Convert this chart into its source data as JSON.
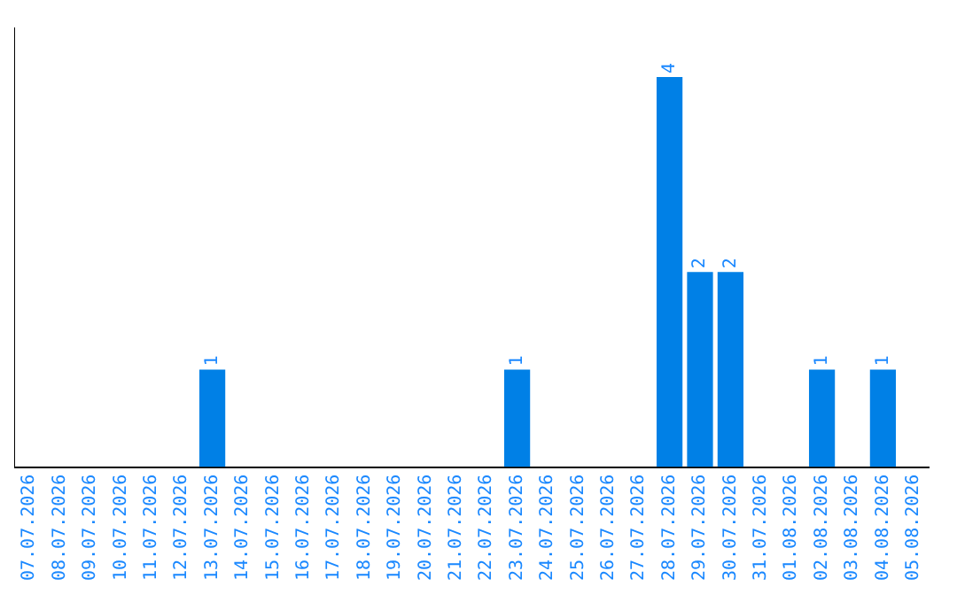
{
  "chart_data": {
    "type": "bar",
    "categories": [
      "07.07.2026",
      "08.07.2026",
      "09.07.2026",
      "10.07.2026",
      "11.07.2026",
      "12.07.2026",
      "13.07.2026",
      "14.07.2026",
      "15.07.2026",
      "16.07.2026",
      "17.07.2026",
      "18.07.2026",
      "19.07.2026",
      "20.07.2026",
      "21.07.2026",
      "22.07.2026",
      "23.07.2026",
      "24.07.2026",
      "25.07.2026",
      "26.07.2026",
      "27.07.2026",
      "28.07.2026",
      "29.07.2026",
      "30.07.2026",
      "31.07.2026",
      "01.08.2026",
      "02.08.2026",
      "03.08.2026",
      "04.08.2026",
      "05.08.2026"
    ],
    "values": [
      0,
      0,
      0,
      0,
      0,
      0,
      1,
      0,
      0,
      0,
      0,
      0,
      0,
      0,
      0,
      0,
      1,
      0,
      0,
      0,
      0,
      4,
      2,
      2,
      0,
      0,
      1,
      0,
      1,
      0
    ],
    "value_labels": [
      null,
      null,
      null,
      null,
      null,
      null,
      "1",
      null,
      null,
      null,
      null,
      null,
      null,
      null,
      null,
      null,
      "1",
      null,
      null,
      null,
      null,
      "4",
      "2",
      "2",
      null,
      null,
      "1",
      null,
      "1",
      null
    ],
    "color": "#0080e6",
    "tick_labels": "x",
    "grid": false,
    "legend": false
  }
}
